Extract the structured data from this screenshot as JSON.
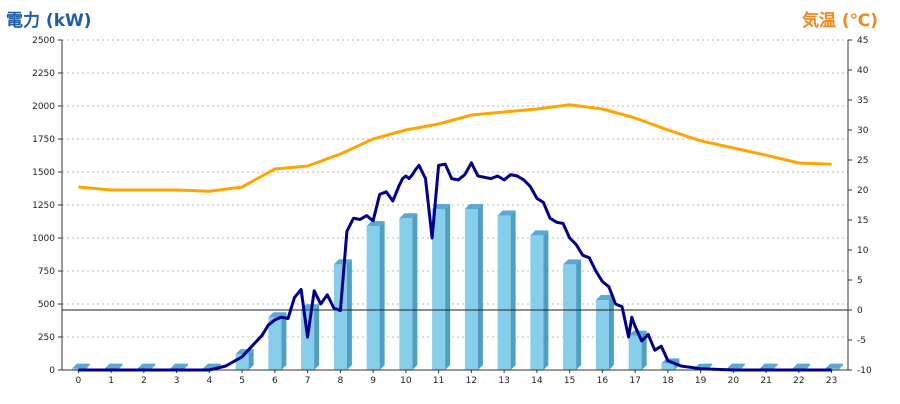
{
  "chart_data": {
    "type": "bar",
    "title_left": "電力 (kW)",
    "title_right": "気温 (℃)",
    "categories": [
      "0",
      "1",
      "2",
      "3",
      "4",
      "5",
      "6",
      "7",
      "8",
      "9",
      "10",
      "11",
      "12",
      "13",
      "14",
      "15",
      "16",
      "17",
      "18",
      "19",
      "20",
      "21",
      "22",
      "23"
    ],
    "ylim": [
      0,
      2500
    ],
    "y_ticks": [
      "0",
      "250",
      "500",
      "750",
      "1000",
      "1250",
      "1500",
      "1750",
      "2000",
      "2250",
      "2500"
    ],
    "y2lim": [
      -10,
      45
    ],
    "y2_ticks": [
      "-10",
      "-5",
      "0",
      "5",
      "10",
      "15",
      "20",
      "25",
      "30",
      "35",
      "40",
      "45"
    ],
    "grid": true,
    "colors": {
      "bar": "#87ceeb",
      "power_line": "#00008b",
      "temp_line": "#ffa500",
      "title_left": "#1f5fa8",
      "title_right": "#f08a1c"
    },
    "series": [
      {
        "axis": "left",
        "kind": "bar",
        "values": [
          10,
          10,
          10,
          10,
          10,
          120,
          400,
          460,
          800,
          1090,
          1150,
          1220,
          1220,
          1170,
          1020,
          800,
          530,
          260,
          50,
          10,
          10,
          10,
          10,
          10
        ]
      },
      {
        "axis": "left",
        "kind": "line",
        "x": [
          0,
          1,
          2,
          3,
          4,
          4.5,
          5,
          5.3,
          5.6,
          5.8,
          6.0,
          6.2,
          6.4,
          6.6,
          6.8,
          7.0,
          7.2,
          7.4,
          7.6,
          7.8,
          8.0,
          8.2,
          8.4,
          8.6,
          8.8,
          9.0,
          9.2,
          9.4,
          9.6,
          9.8,
          9.9,
          10.0,
          10.1,
          10.2,
          10.3,
          10.4,
          10.6,
          10.8,
          11.0,
          11.2,
          11.4,
          11.6,
          11.8,
          12.0,
          12.2,
          12.4,
          12.6,
          12.8,
          13.0,
          13.2,
          13.4,
          13.6,
          13.8,
          14.0,
          14.2,
          14.4,
          14.6,
          14.8,
          15.0,
          15.2,
          15.4,
          15.6,
          15.8,
          16.0,
          16.1,
          16.2,
          16.4,
          16.6,
          16.8,
          16.9,
          17.0,
          17.2,
          17.4,
          17.6,
          17.8,
          18.0,
          18.2,
          18.4,
          19,
          20,
          21,
          22,
          23
        ],
        "values": [
          0,
          0,
          0,
          0,
          0,
          30,
          100,
          180,
          260,
          340,
          380,
          400,
          390,
          550,
          610,
          250,
          600,
          500,
          570,
          470,
          450,
          1050,
          1150,
          1140,
          1170,
          1130,
          1330,
          1350,
          1280,
          1400,
          1450,
          1470,
          1450,
          1480,
          1520,
          1550,
          1450,
          1000,
          1550,
          1560,
          1450,
          1440,
          1480,
          1570,
          1470,
          1460,
          1450,
          1470,
          1440,
          1480,
          1470,
          1440,
          1390,
          1300,
          1270,
          1150,
          1120,
          1110,
          1000,
          950,
          870,
          850,
          750,
          670,
          650,
          630,
          500,
          480,
          250,
          400,
          330,
          220,
          270,
          150,
          180,
          70,
          50,
          30,
          10,
          0,
          0,
          0,
          0
        ]
      },
      {
        "axis": "right",
        "kind": "line",
        "x": [
          0,
          1,
          2,
          3,
          4,
          5,
          6,
          7,
          8,
          9,
          10,
          11,
          12,
          13,
          14,
          15,
          16,
          17,
          18,
          19,
          20,
          21,
          22,
          23
        ],
        "values": [
          20.5,
          20,
          20,
          20,
          19.8,
          20.5,
          23.5,
          24,
          26,
          28.5,
          30,
          31,
          32.5,
          33,
          33.5,
          34.2,
          33.5,
          32,
          30,
          28.2,
          27,
          25.8,
          24.5,
          24.3
        ]
      }
    ]
  }
}
